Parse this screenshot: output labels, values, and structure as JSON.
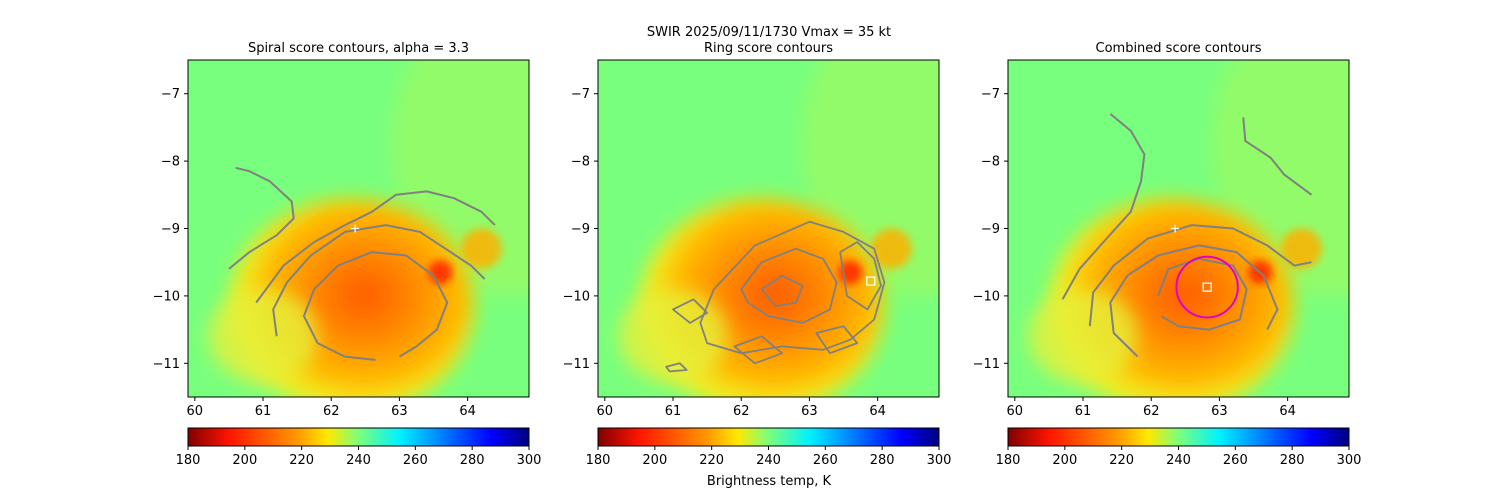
{
  "figure": {
    "suptitle_line1": "SWIR  2025/09/11/1730    Vmax = 35 kt",
    "colorbar_label": "Brightness temp, K"
  },
  "colors": {
    "contour": "#808080",
    "center_marker": "#ffffff",
    "ring_circle": "#e000c8",
    "background_field": "#79ff7e"
  },
  "chart_data": [
    {
      "type": "heatmap",
      "title": "Spiral score contours, alpha =  3.3",
      "xlim": [
        59.9,
        64.9
      ],
      "ylim": [
        -11.5,
        -6.5
      ],
      "xticks": [
        60,
        61,
        62,
        63,
        64
      ],
      "yticks": [
        -7,
        -8,
        -9,
        -10,
        -11
      ],
      "colorbar": {
        "cmap": "jet_r",
        "range": [
          180,
          300
        ],
        "ticks": [
          180,
          200,
          220,
          240,
          260,
          280,
          300
        ]
      },
      "markers": [
        {
          "kind": "plus",
          "x": 62.35,
          "y": -9.0
        }
      ],
      "contours": [
        [
          [
            60.5,
            -9.6
          ],
          [
            60.8,
            -9.35
          ],
          [
            61.2,
            -9.1
          ],
          [
            61.45,
            -8.85
          ],
          [
            61.42,
            -8.6
          ],
          [
            61.1,
            -8.3
          ],
          [
            60.8,
            -8.15
          ],
          [
            60.6,
            -8.1
          ]
        ],
        [
          [
            60.9,
            -10.1
          ],
          [
            61.3,
            -9.55
          ],
          [
            61.75,
            -9.2
          ],
          [
            62.2,
            -8.95
          ],
          [
            62.6,
            -8.75
          ],
          [
            62.95,
            -8.5
          ],
          [
            63.4,
            -8.45
          ],
          [
            63.8,
            -8.55
          ],
          [
            64.2,
            -8.75
          ],
          [
            64.4,
            -8.95
          ]
        ],
        [
          [
            61.2,
            -10.6
          ],
          [
            61.15,
            -10.2
          ],
          [
            61.35,
            -9.8
          ],
          [
            61.7,
            -9.4
          ],
          [
            62.2,
            -9.05
          ],
          [
            62.8,
            -8.95
          ],
          [
            63.3,
            -9.05
          ],
          [
            63.75,
            -9.35
          ],
          [
            64.05,
            -9.55
          ],
          [
            64.25,
            -9.75
          ]
        ],
        [
          [
            62.65,
            -10.95
          ],
          [
            62.2,
            -10.9
          ],
          [
            61.8,
            -10.7
          ],
          [
            61.6,
            -10.3
          ],
          [
            61.75,
            -9.9
          ],
          [
            62.1,
            -9.55
          ],
          [
            62.6,
            -9.35
          ],
          [
            63.1,
            -9.4
          ],
          [
            63.5,
            -9.7
          ],
          [
            63.7,
            -10.1
          ],
          [
            63.55,
            -10.5
          ],
          [
            63.25,
            -10.75
          ],
          [
            63.0,
            -10.9
          ]
        ]
      ]
    },
    {
      "type": "heatmap",
      "title": "Ring score contours",
      "xlim": [
        59.9,
        64.9
      ],
      "ylim": [
        -11.5,
        -6.5
      ],
      "xticks": [
        60,
        61,
        62,
        63,
        64
      ],
      "yticks": [
        -7,
        -8,
        -9,
        -10,
        -11
      ],
      "colorbar": {
        "cmap": "jet_r",
        "range": [
          180,
          300
        ],
        "ticks": [
          180,
          200,
          220,
          240,
          260,
          280,
          300
        ]
      },
      "markers": [
        {
          "kind": "square",
          "x": 63.9,
          "y": -9.78
        }
      ],
      "contours": [
        [
          [
            61.4,
            -10.4
          ],
          [
            61.6,
            -9.9
          ],
          [
            62.2,
            -9.25
          ],
          [
            63.0,
            -8.9
          ],
          [
            63.5,
            -9.05
          ],
          [
            63.95,
            -9.3
          ],
          [
            64.1,
            -9.8
          ],
          [
            63.95,
            -10.35
          ],
          [
            63.6,
            -10.65
          ],
          [
            63.2,
            -10.8
          ],
          [
            62.6,
            -10.75
          ],
          [
            62.0,
            -10.85
          ],
          [
            61.5,
            -10.7
          ]
        ],
        [
          [
            62.0,
            -9.9
          ],
          [
            62.3,
            -9.5
          ],
          [
            62.8,
            -9.3
          ],
          [
            63.2,
            -9.45
          ],
          [
            63.4,
            -9.8
          ],
          [
            63.3,
            -10.2
          ],
          [
            62.9,
            -10.4
          ],
          [
            62.4,
            -10.3
          ],
          [
            62.1,
            -10.1
          ]
        ],
        [
          [
            63.45,
            -9.35
          ],
          [
            63.7,
            -9.2
          ],
          [
            63.95,
            -9.45
          ],
          [
            64.05,
            -9.85
          ],
          [
            63.85,
            -10.2
          ],
          [
            63.55,
            -10.0
          ],
          [
            63.5,
            -9.65
          ]
        ],
        [
          [
            62.3,
            -9.9
          ],
          [
            62.6,
            -9.7
          ],
          [
            62.9,
            -9.85
          ],
          [
            62.8,
            -10.1
          ],
          [
            62.5,
            -10.15
          ]
        ],
        [
          [
            61.0,
            -10.2
          ],
          [
            61.3,
            -10.05
          ],
          [
            61.5,
            -10.25
          ],
          [
            61.25,
            -10.4
          ]
        ],
        [
          [
            61.9,
            -10.75
          ],
          [
            62.3,
            -10.6
          ],
          [
            62.6,
            -10.85
          ],
          [
            62.2,
            -11.0
          ]
        ],
        [
          [
            63.1,
            -10.55
          ],
          [
            63.5,
            -10.45
          ],
          [
            63.7,
            -10.7
          ],
          [
            63.3,
            -10.85
          ]
        ],
        [
          [
            60.9,
            -11.05
          ],
          [
            61.1,
            -11.0
          ],
          [
            61.2,
            -11.1
          ],
          [
            60.95,
            -11.12
          ]
        ]
      ]
    },
    {
      "type": "heatmap",
      "title": "Combined score contours",
      "xlim": [
        59.9,
        64.9
      ],
      "ylim": [
        -11.5,
        -6.5
      ],
      "xticks": [
        60,
        61,
        62,
        63,
        64
      ],
      "yticks": [
        -7,
        -8,
        -9,
        -10,
        -11
      ],
      "colorbar": {
        "cmap": "jet_r",
        "range": [
          180,
          300
        ],
        "ticks": [
          180,
          200,
          220,
          240,
          260,
          280,
          300
        ]
      },
      "markers": [
        {
          "kind": "plus",
          "x": 62.35,
          "y": -9.0
        },
        {
          "kind": "square",
          "x": 62.82,
          "y": -9.87
        },
        {
          "kind": "circle",
          "x": 62.82,
          "y": -9.87,
          "r": 0.45
        }
      ],
      "contours": [
        [
          [
            61.4,
            -7.3
          ],
          [
            61.7,
            -7.55
          ],
          [
            61.9,
            -7.9
          ],
          [
            61.85,
            -8.3
          ],
          [
            61.7,
            -8.75
          ],
          [
            61.3,
            -9.2
          ],
          [
            60.95,
            -9.6
          ],
          [
            60.7,
            -10.05
          ]
        ],
        [
          [
            63.35,
            -7.35
          ],
          [
            63.38,
            -7.7
          ],
          [
            63.75,
            -7.95
          ],
          [
            63.95,
            -8.2
          ],
          [
            64.15,
            -8.35
          ],
          [
            64.35,
            -8.5
          ]
        ],
        [
          [
            61.1,
            -10.45
          ],
          [
            61.15,
            -9.95
          ],
          [
            61.45,
            -9.55
          ],
          [
            61.95,
            -9.15
          ],
          [
            62.6,
            -8.95
          ],
          [
            63.2,
            -9.0
          ],
          [
            63.7,
            -9.25
          ],
          [
            64.1,
            -9.55
          ],
          [
            64.35,
            -9.5
          ]
        ],
        [
          [
            61.8,
            -10.9
          ],
          [
            61.45,
            -10.55
          ],
          [
            61.4,
            -10.1
          ],
          [
            61.65,
            -9.7
          ],
          [
            62.1,
            -9.4
          ],
          [
            62.7,
            -9.25
          ],
          [
            63.25,
            -9.35
          ],
          [
            63.65,
            -9.7
          ],
          [
            63.85,
            -10.2
          ],
          [
            63.7,
            -10.5
          ]
        ],
        [
          [
            62.1,
            -10.0
          ],
          [
            62.25,
            -9.6
          ],
          [
            62.7,
            -9.45
          ],
          [
            63.2,
            -9.55
          ],
          [
            63.4,
            -9.9
          ],
          [
            63.3,
            -10.35
          ],
          [
            62.85,
            -10.5
          ],
          [
            62.4,
            -10.45
          ],
          [
            62.15,
            -10.3
          ]
        ]
      ]
    }
  ]
}
